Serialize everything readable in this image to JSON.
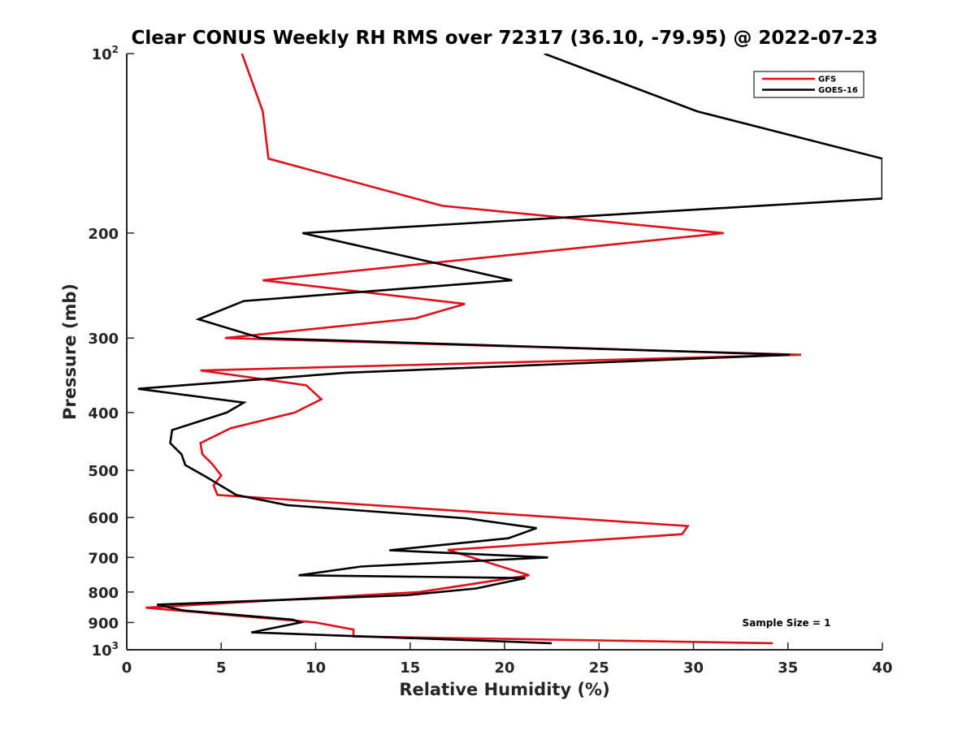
{
  "chart_data": {
    "type": "line",
    "title": "Clear CONUS Weekly RH RMS over 72317 (36.10, -79.95) @ 2022-07-23",
    "xlabel": "Relative Humidity (%)",
    "ylabel": "Pressure (mb)",
    "xlim": [
      0,
      40
    ],
    "ylim": [
      100,
      1000
    ],
    "y_scale": "log",
    "y_reversed": true,
    "grid": false,
    "legend_position": "top-right",
    "x_ticks": [
      {
        "value": 0,
        "label": "0"
      },
      {
        "value": 5,
        "label": "5"
      },
      {
        "value": 10,
        "label": "10"
      },
      {
        "value": 15,
        "label": "15"
      },
      {
        "value": 20,
        "label": "20"
      },
      {
        "value": 25,
        "label": "25"
      },
      {
        "value": 30,
        "label": "30"
      },
      {
        "value": 35,
        "label": "35"
      },
      {
        "value": 40,
        "label": "40"
      }
    ],
    "y_ticks": [
      {
        "value": 100,
        "label": "10",
        "exponent": "2"
      },
      {
        "value": 200,
        "label": "200"
      },
      {
        "value": 300,
        "label": "300"
      },
      {
        "value": 400,
        "label": "400"
      },
      {
        "value": 500,
        "label": "500"
      },
      {
        "value": 600,
        "label": "600"
      },
      {
        "value": 700,
        "label": "700"
      },
      {
        "value": 800,
        "label": "800"
      },
      {
        "value": 900,
        "label": "900"
      },
      {
        "value": 1000,
        "label": "10",
        "exponent": "3"
      }
    ],
    "series": [
      {
        "name": "GFS",
        "color": "#e0101a",
        "points": [
          [
            6.1,
            100
          ],
          [
            7.2,
            125
          ],
          [
            7.5,
            150
          ],
          [
            16.7,
            180
          ],
          [
            31.6,
            200
          ],
          [
            7.2,
            240
          ],
          [
            17.9,
            263
          ],
          [
            15.3,
            278
          ],
          [
            5.2,
            300
          ],
          [
            35.7,
            320
          ],
          [
            3.9,
            340
          ],
          [
            9.5,
            360
          ],
          [
            10.3,
            380
          ],
          [
            8.9,
            400
          ],
          [
            5.5,
            425
          ],
          [
            3.9,
            450
          ],
          [
            4.0,
            470
          ],
          [
            4.5,
            487
          ],
          [
            5.0,
            510
          ],
          [
            4.6,
            530
          ],
          [
            4.8,
            550
          ],
          [
            29.7,
            620
          ],
          [
            29.4,
            640
          ],
          [
            17.0,
            680
          ],
          [
            21.3,
            750
          ],
          [
            15.5,
            800
          ],
          [
            1.0,
            850
          ],
          [
            5.5,
            875
          ],
          [
            10.0,
            900
          ],
          [
            12.0,
            925
          ],
          [
            12.0,
            950
          ],
          [
            34.2,
            975
          ]
        ]
      },
      {
        "name": "GOES-16",
        "color": "#000000",
        "points": [
          [
            22.1,
            100
          ],
          [
            30.2,
            125
          ],
          [
            40.0,
            150
          ],
          [
            40.0,
            175
          ],
          [
            9.3,
            200
          ],
          [
            20.4,
            240
          ],
          [
            6.2,
            260
          ],
          [
            3.8,
            279
          ],
          [
            7.1,
            300
          ],
          [
            35.1,
            320
          ],
          [
            11.6,
            343
          ],
          [
            0.6,
            365
          ],
          [
            6.2,
            385
          ],
          [
            5.3,
            400
          ],
          [
            2.4,
            428
          ],
          [
            2.3,
            450
          ],
          [
            2.9,
            470
          ],
          [
            3.1,
            490
          ],
          [
            4.3,
            515
          ],
          [
            5.8,
            550
          ],
          [
            8.5,
            572
          ],
          [
            18.0,
            602
          ],
          [
            21.7,
            625
          ],
          [
            20.2,
            650
          ],
          [
            13.9,
            681
          ],
          [
            22.3,
            700
          ],
          [
            12.4,
            725
          ],
          [
            9.1,
            750
          ],
          [
            21.1,
            758
          ],
          [
            18.5,
            789
          ],
          [
            14.8,
            810
          ],
          [
            1.6,
            840
          ],
          [
            3.0,
            859
          ],
          [
            8.8,
            890
          ],
          [
            9.2,
            900
          ],
          [
            6.6,
            935
          ],
          [
            22.5,
            975
          ]
        ]
      }
    ],
    "annotations": [
      {
        "text": "Sample Size = 1"
      }
    ]
  }
}
